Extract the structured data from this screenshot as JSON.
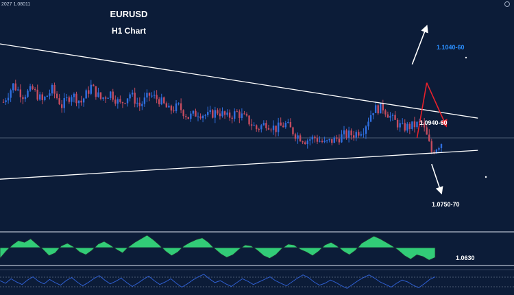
{
  "header": {
    "symbol_readout": "2027 1.08011",
    "title": "EURUSD",
    "subtitle": "H1 Chart"
  },
  "annotations": {
    "upper_target": "1.1040-60",
    "resistance": "1.0940-60",
    "support": "1.0750-70",
    "lower_target": "1.0630"
  },
  "colors": {
    "background": "#0c1c38",
    "bull_candle": "#2f6fe0",
    "bear_candle": "#c64c5f",
    "trendline": "#ffffff",
    "up_target_text": "#2b8fff",
    "bearish_arrow": "#e8212b",
    "oscillator_fill": "#35d67a",
    "rsi_line": "#2f5fd0"
  },
  "icons": [
    "settings-icon",
    "up-arrow-icon",
    "down-arrow-icon",
    "bearish-zigzag-arrow-icon"
  ],
  "chart_data": {
    "type": "candlestick",
    "title": "EURUSD",
    "subtitle": "H1 Chart",
    "ylim": [
      1.06,
      1.11
    ],
    "candles_count": 140,
    "price_path": [
      [
        0,
        1.0878
      ],
      [
        4,
        1.0915
      ],
      [
        8,
        1.0893
      ],
      [
        12,
        1.0905
      ],
      [
        16,
        1.088
      ],
      [
        20,
        1.0905
      ],
      [
        24,
        1.087
      ],
      [
        28,
        1.0895
      ],
      [
        32,
        1.0878
      ],
      [
        36,
        1.0912
      ],
      [
        40,
        1.0885
      ],
      [
        44,
        1.0898
      ],
      [
        48,
        1.0873
      ],
      [
        52,
        1.0896
      ],
      [
        56,
        1.087
      ],
      [
        60,
        1.0893
      ],
      [
        64,
        1.0883
      ],
      [
        68,
        1.086
      ],
      [
        72,
        1.0868
      ],
      [
        76,
        1.0845
      ],
      [
        80,
        1.0855
      ],
      [
        84,
        1.0848
      ],
      [
        88,
        1.0858
      ],
      [
        92,
        1.0845
      ],
      [
        96,
        1.0855
      ],
      [
        100,
        1.084
      ],
      [
        104,
        1.082
      ],
      [
        108,
        1.0832
      ],
      [
        112,
        1.082
      ],
      [
        116,
        1.083
      ],
      [
        120,
        1.0808
      ],
      [
        124,
        1.0795
      ],
      [
        128,
        1.08
      ],
      [
        132,
        1.0788
      ],
      [
        136,
        1.0796
      ],
      [
        140,
        1.0806
      ],
      [
        144,
        1.0808
      ],
      [
        148,
        1.082
      ],
      [
        152,
        1.0862
      ],
      [
        156,
        1.0866
      ],
      [
        160,
        1.084
      ],
      [
        164,
        1.0822
      ],
      [
        168,
        1.0826
      ],
      [
        172,
        1.0832
      ],
      [
        174,
        1.0803
      ],
      [
        176,
        1.077
      ],
      [
        178,
        1.078
      ],
      [
        180,
        1.079
      ]
    ],
    "trendlines": {
      "descending_resistance": [
        [
          -2,
          1.1005
        ],
        [
          195,
          1.0843
        ]
      ],
      "ascending_support": [
        [
          -2,
          1.071
        ],
        [
          195,
          1.0773
        ]
      ],
      "horizontal_level": 1.08
    },
    "projections": [
      {
        "from": [
          170,
          1.08
        ],
        "to": [
          174,
          1.092
        ],
        "style": "red"
      },
      {
        "from": [
          174,
          1.092
        ],
        "to": [
          182,
          1.0826
        ],
        "style": "red-arrow"
      },
      {
        "from": [
          168,
          1.096
        ],
        "to": [
          174,
          1.1043
        ],
        "style": "white-arrow"
      },
      {
        "from": [
          176,
          1.0743
        ],
        "to": [
          180,
          1.068
        ],
        "style": "white-arrow"
      }
    ],
    "oscillator": {
      "type": "area",
      "values": [
        -1.2,
        -0.4,
        0.3,
        0.8,
        0.6,
        1.0,
        0.4,
        -0.2,
        -0.9,
        -0.6,
        0.2,
        0.5,
        0.1,
        -0.5,
        -0.8,
        -0.3,
        0.4,
        0.7,
        0.3,
        -0.2,
        -0.6,
        0.1,
        0.6,
        1.0,
        1.4,
        0.9,
        0.3,
        -0.4,
        -0.9,
        -0.5,
        0.2,
        0.6,
        0.9,
        1.1,
        0.6,
        -0.1,
        -0.7,
        -1.1,
        -0.8,
        -0.2,
        0.3,
        0.2,
        -0.3,
        -0.9,
        -1.2,
        -0.8,
        -0.1,
        0.4,
        0.3,
        -0.2,
        -0.5,
        -0.9,
        -0.4,
        0.3,
        0.6,
        0.2,
        -0.4,
        -0.8,
        -0.3,
        0.5,
        0.9,
        1.3,
        1.0,
        0.6,
        0.2,
        -0.3,
        -0.9,
        -1.3,
        -0.8,
        -1.0,
        -1.4,
        -1.1
      ]
    },
    "rsi": {
      "type": "line",
      "values": [
        52,
        48,
        55,
        50,
        46,
        53,
        58,
        51,
        47,
        54,
        49,
        45,
        52,
        57,
        50,
        44,
        49,
        55,
        60,
        53,
        47,
        51,
        56,
        49,
        43,
        48,
        54,
        59,
        52,
        46,
        50,
        55,
        48,
        42,
        47,
        53,
        58,
        62,
        55,
        49,
        52,
        47,
        43,
        49,
        55,
        51,
        46,
        50,
        54,
        58,
        52,
        48,
        44,
        50,
        56,
        61,
        57,
        50,
        45,
        48,
        53,
        49,
        44,
        40,
        46,
        52,
        57,
        61,
        56,
        50,
        46,
        42,
        48,
        53,
        50,
        45,
        41,
        47,
        54,
        58
      ]
    }
  }
}
